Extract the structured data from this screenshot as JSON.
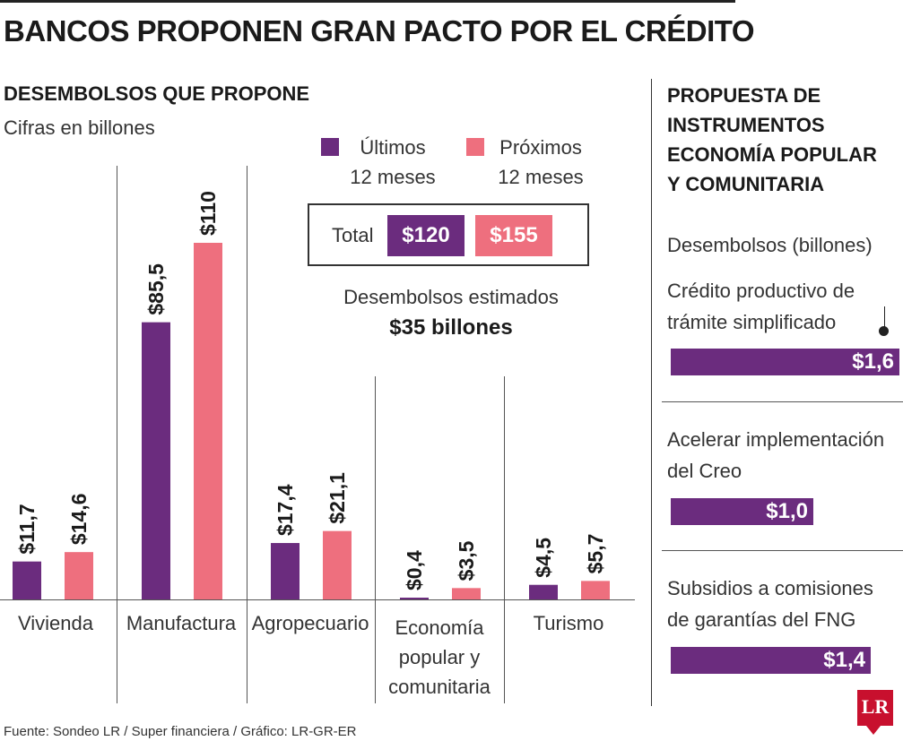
{
  "header": {
    "title": "BANCOS PROPONEN GRAN PACTO POR EL CRÉDITO"
  },
  "legend": {
    "ultimos_line1": "Últimos",
    "ultimos_line2": "12 meses",
    "proximos_line1": "Próximos",
    "proximos_line2": "12 meses"
  },
  "totals": {
    "label": "Total",
    "ultimos": "$120",
    "proximos": "$155"
  },
  "estimate": {
    "label": "Desembolsos estimados",
    "value": "$35 billones"
  },
  "colors": {
    "ultimos": "#6b2c7e",
    "proximos": "#ee6f7e",
    "text": "#333333"
  },
  "chart_data": {
    "type": "bar",
    "title": "DESEMBOLSOS QUE PROPONE",
    "subtitle": "Cifras en billones",
    "categories": [
      "Vivienda",
      "Manufactura",
      "Agropecuario",
      "Economía popular y comunitaria",
      "Turismo"
    ],
    "category_lines": [
      [
        "Vivienda"
      ],
      [
        "Manufactura"
      ],
      [
        "Agropecuario"
      ],
      [
        "Economía",
        "popular y",
        "comunitaria"
      ],
      [
        "Turismo"
      ]
    ],
    "series": [
      {
        "name": "Últimos 12 meses",
        "values": [
          11.7,
          85.5,
          17.4,
          0.4,
          4.5
        ],
        "labels": [
          "$11,7",
          "$85,5",
          "$17,4",
          "$0,4",
          "$4,5"
        ],
        "color": "#6b2c7e"
      },
      {
        "name": "Próximos 12 meses",
        "values": [
          14.6,
          110,
          21.1,
          3.5,
          5.7
        ],
        "labels": [
          "$14,6",
          "$110",
          "$21,1",
          "$3,5",
          "$5,7"
        ],
        "color": "#ee6f7e"
      }
    ],
    "ylim": [
      0,
      110
    ],
    "grid": false,
    "legend": "top-right"
  },
  "right_panel": {
    "title": "PROPUESTA DE INSTRUMENTOS ECONOMÍA POPULAR Y COMUNITARIA",
    "subtitle": "Desembolsos (billones)",
    "items": [
      {
        "text_line1": "Crédito productivo de",
        "text_line2": "trámite simplificado",
        "value": 1.6,
        "label": "$1,6"
      },
      {
        "text_line1": "Acelerar implementación",
        "text_line2": "del Creo",
        "value": 1.0,
        "label": "$1,0"
      },
      {
        "text_line1": "Subsidios a comisiones",
        "text_line2": "de garantías del FNG",
        "value": 1.4,
        "label": "$1,4"
      }
    ]
  },
  "footer": {
    "source": "Fuente: Sondeo LR / Super financiera / Gráfico: LR-GR-ER",
    "logo": "LR"
  }
}
